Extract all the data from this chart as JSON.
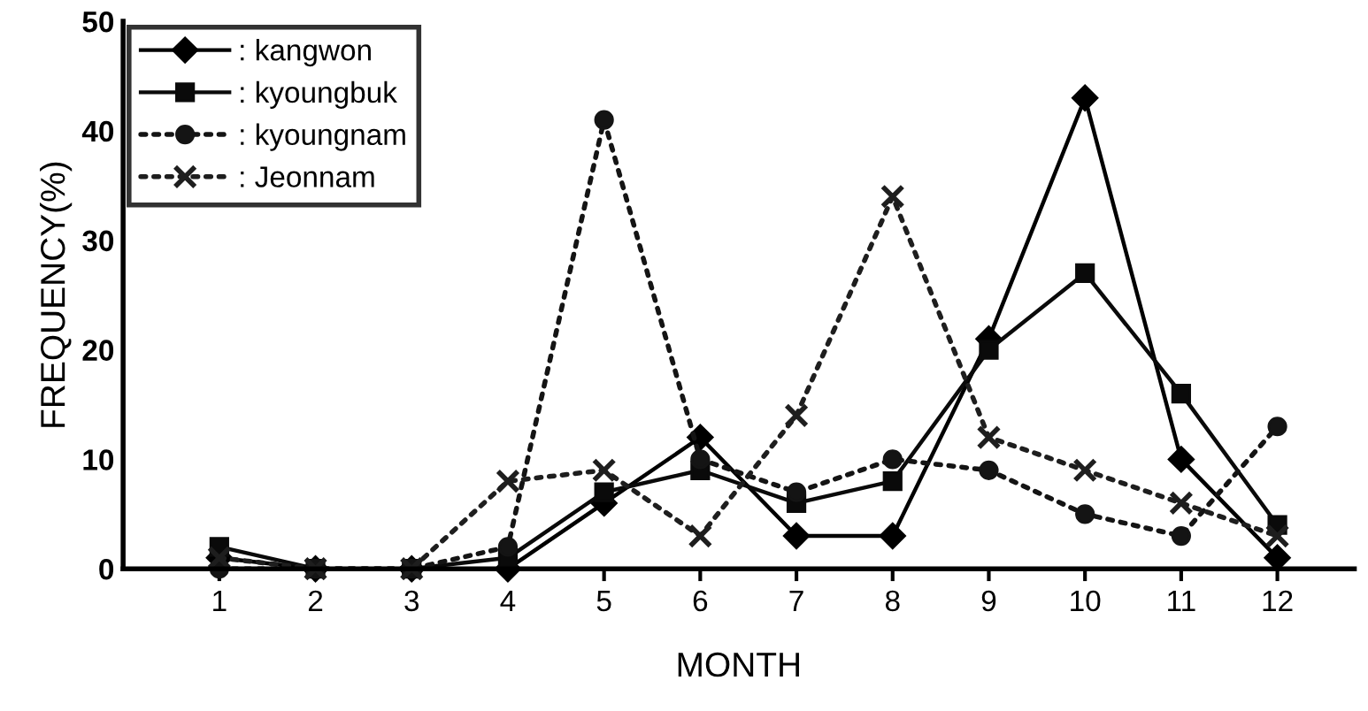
{
  "chart_data": {
    "type": "line",
    "xlabel": "MONTH",
    "ylabel": "FREQUENCY(%)",
    "categories": [
      "1",
      "2",
      "3",
      "4",
      "5",
      "6",
      "7",
      "8",
      "9",
      "10",
      "11",
      "12"
    ],
    "series": [
      {
        "name": ": kangwon",
        "color": "#000000",
        "marker": "diamond",
        "line_style": "solid",
        "values": [
          1,
          0,
          0,
          0,
          6,
          12,
          3,
          3,
          21,
          43,
          10,
          1
        ]
      },
      {
        "name": ": kyoungbuk",
        "color": "#0a0a0a",
        "marker": "square",
        "line_style": "solid",
        "values": [
          2,
          0,
          0,
          1,
          7,
          9,
          6,
          8,
          20,
          27,
          16,
          4
        ]
      },
      {
        "name": ": kyoungnam",
        "color": "#141414",
        "marker": "circle",
        "line_style": "dotted",
        "values": [
          0,
          0,
          0,
          2,
          41,
          10,
          7,
          10,
          9,
          5,
          3,
          13
        ]
      },
      {
        "name": ": Jeonnam",
        "color": "#1e1e1e",
        "marker": "cross",
        "line_style": "dotted",
        "values": [
          1,
          0,
          0,
          8,
          9,
          3,
          14,
          34,
          12,
          9,
          6,
          3
        ]
      }
    ],
    "ylim": [
      0,
      50
    ],
    "yticks": [
      0,
      10,
      20,
      30,
      40,
      50
    ],
    "grid": false,
    "legend": "top left"
  }
}
